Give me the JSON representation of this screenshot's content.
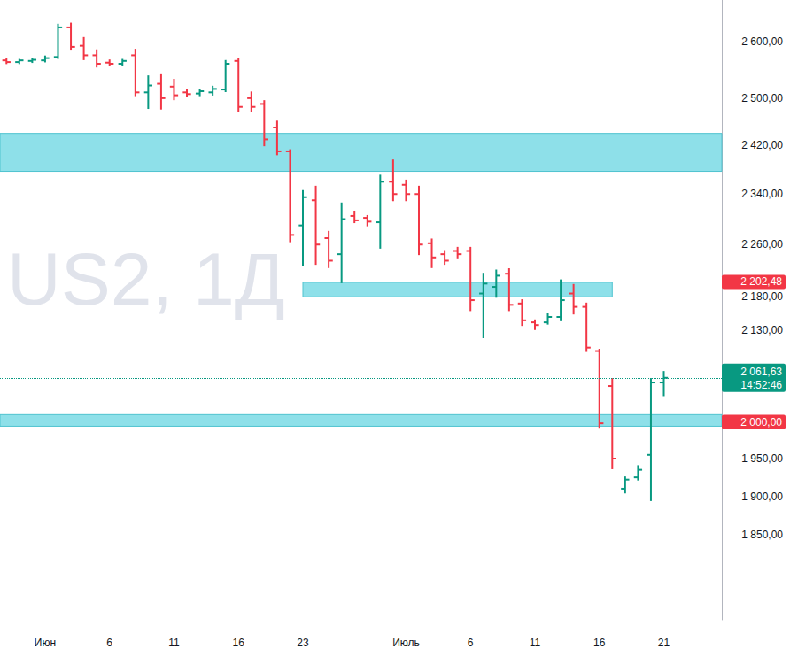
{
  "chart_data": {
    "type": "ohlc",
    "watermark": "US2, 1Д",
    "categories": [
      null,
      null,
      null,
      "Июн",
      null,
      null,
      null,
      null,
      "6",
      null,
      null,
      null,
      null,
      "11",
      null,
      null,
      null,
      null,
      "16",
      null,
      null,
      null,
      null,
      "23",
      null,
      null,
      null,
      null,
      null,
      null,
      null,
      "Июль",
      null,
      null,
      null,
      null,
      "6",
      null,
      null,
      null,
      null,
      "11",
      null,
      null,
      null,
      null,
      "16",
      null,
      null,
      null,
      null,
      "21",
      null,
      null,
      null,
      null
    ],
    "values": [
      [
        2566,
        2568,
        2561,
        2563
      ],
      [
        2563,
        2567,
        2561,
        2566
      ],
      [
        2565,
        2568,
        2563,
        2567
      ],
      [
        2566,
        2573,
        2564,
        2570
      ],
      [
        2572,
        2630,
        2570,
        2625
      ],
      [
        2625,
        2632,
        2585,
        2590
      ],
      [
        2592,
        2606,
        2568,
        2575
      ],
      [
        2575,
        2584,
        2555,
        2560
      ],
      [
        2562,
        2566,
        2558,
        2560
      ],
      [
        2560,
        2567,
        2558,
        2565
      ],
      [
        2575,
        2585,
        2505,
        2510
      ],
      [
        2510,
        2538,
        2483,
        2522
      ],
      [
        2525,
        2540,
        2482,
        2500
      ],
      [
        2520,
        2532,
        2498,
        2505
      ],
      [
        2510,
        2515,
        2503,
        2507
      ],
      [
        2508,
        2515,
        2505,
        2512
      ],
      [
        2510,
        2520,
        2506,
        2516
      ],
      [
        2515,
        2565,
        2512,
        2560
      ],
      [
        2565,
        2568,
        2478,
        2485
      ],
      [
        2500,
        2510,
        2478,
        2485
      ],
      [
        2490,
        2495,
        2420,
        2430
      ],
      [
        2450,
        2460,
        2405,
        2410
      ],
      [
        2410,
        2412,
        2265,
        2275
      ],
      [
        2290,
        2345,
        2228,
        2335
      ],
      [
        2330,
        2352,
        2230,
        2260
      ],
      [
        2270,
        2280,
        2225,
        2235
      ],
      [
        2245,
        2325,
        2202,
        2300
      ],
      [
        2305,
        2312,
        2295,
        2298
      ],
      [
        2302,
        2305,
        2290,
        2296
      ],
      [
        2295,
        2370,
        2255,
        2360
      ],
      [
        2360,
        2395,
        2330,
        2340
      ],
      [
        2355,
        2362,
        2330,
        2340
      ],
      [
        2340,
        2352,
        2245,
        2260
      ],
      [
        2262,
        2268,
        2225,
        2240
      ],
      [
        2245,
        2250,
        2230,
        2235
      ],
      [
        2250,
        2255,
        2240,
        2245
      ],
      [
        2250,
        2255,
        2160,
        2175
      ],
      [
        2185,
        2215,
        2120,
        2200
      ],
      [
        2195,
        2220,
        2180,
        2212
      ],
      [
        2215,
        2222,
        2160,
        2168
      ],
      [
        2170,
        2175,
        2138,
        2145
      ],
      [
        2142,
        2145,
        2132,
        2138
      ],
      [
        2142,
        2155,
        2140,
        2150
      ],
      [
        2150,
        2205,
        2145,
        2175
      ],
      [
        2185,
        2198,
        2155,
        2165
      ],
      [
        2165,
        2170,
        2100,
        2105
      ],
      [
        2100,
        2102,
        1993,
        1998
      ],
      [
        2050,
        2060,
        1937,
        1950
      ],
      [
        1910,
        1925,
        1905,
        1922
      ],
      [
        1925,
        1940,
        1922,
        1935
      ],
      [
        1955,
        2060,
        1895,
        2055
      ],
      [
        2055,
        2070,
        2037,
        2061.63
      ],
      null,
      null,
      null,
      null
    ],
    "colors": [
      "#f23645",
      "#089981",
      "#089981",
      "#089981",
      "#089981",
      "#f23645",
      "#f23645",
      "#f23645",
      "#f23645",
      "#089981",
      "#f23645",
      "#089981",
      "#f23645",
      "#f23645",
      "#f23645",
      "#089981",
      "#089981",
      "#089981",
      "#f23645",
      "#f23645",
      "#f23645",
      "#f23645",
      "#f23645",
      "#089981",
      "#f23645",
      "#f23645",
      "#089981",
      "#f23645",
      "#f23645",
      "#089981",
      "#f23645",
      "#f23645",
      "#f23645",
      "#f23645",
      "#f23645",
      "#f23645",
      "#f23645",
      "#089981",
      "#089981",
      "#f23645",
      "#f23645",
      "#f23645",
      "#089981",
      "#089981",
      "#f23645",
      "#f23645",
      "#f23645",
      "#f23645",
      "#089981",
      "#089981",
      "#089981",
      "#089981",
      null,
      null,
      null,
      null
    ],
    "log": "y",
    "grid": false,
    "ylim": [
      1745,
      2675
    ],
    "yticks": [
      {
        "value": 1850,
        "label": "1 850,00"
      },
      {
        "value": 1900,
        "label": "1 900,00"
      },
      {
        "value": 1950,
        "label": "1 950,00"
      },
      {
        "value": 2130,
        "label": "2 130,00"
      },
      {
        "value": 2180,
        "label": "2 180,00"
      },
      {
        "value": 2260,
        "label": "2 260,00"
      },
      {
        "value": 2340,
        "label": "2 340,00"
      },
      {
        "value": 2420,
        "label": "2 420,00"
      },
      {
        "value": 2500,
        "label": "2 500,00"
      },
      {
        "value": 2600,
        "label": "2 600,00"
      }
    ],
    "zones": [
      {
        "from": 2377,
        "to": 2440,
        "color": "#8ee0e9"
      },
      {
        "from": 2180,
        "to": 2202,
        "start": 23,
        "end": 47,
        "color": "#8ee0e9"
      },
      {
        "from": 1994,
        "to": 2010,
        "color": "#8ee0e9"
      }
    ],
    "levels": [
      {
        "value": 2202.48,
        "label": "2 202,48",
        "color": "#f23645",
        "start": 23,
        "line_style": "solid"
      },
      {
        "value": 2061.63,
        "label": "2 061,63",
        "sublabel": "14:52:46",
        "color": "#089981",
        "line_style": "dotted"
      },
      {
        "value": 2000,
        "label": "2 000,00",
        "color": "#f23645",
        "line_style": "none"
      }
    ]
  }
}
